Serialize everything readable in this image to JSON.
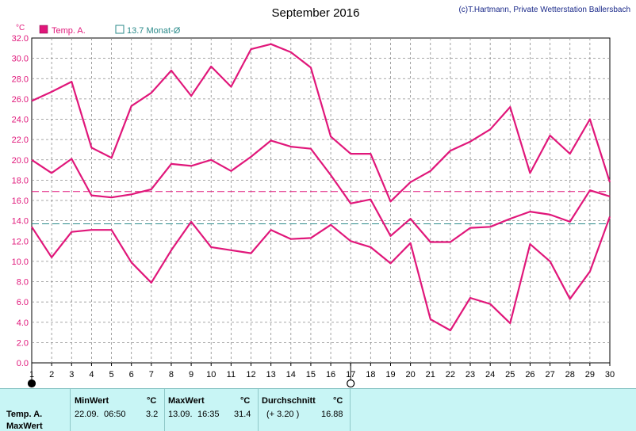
{
  "title": "September 2016",
  "credit": "(c)T.Hartmann, Private Wetterstation Ballersbach",
  "unit_label": "°C",
  "legend": {
    "series_label": "Temp. A.",
    "series_color": "#e0177a",
    "avg_label": "13.7 Monat-Ø",
    "avg_color": "#2a8a8a"
  },
  "chart_data": {
    "type": "line",
    "x": [
      1,
      2,
      3,
      4,
      5,
      6,
      7,
      8,
      9,
      10,
      11,
      12,
      13,
      14,
      15,
      16,
      17,
      18,
      19,
      20,
      21,
      22,
      23,
      24,
      25,
      26,
      27,
      28,
      29,
      30
    ],
    "ylim": [
      0,
      32
    ],
    "y_ticks": [
      "0.0",
      "2.0",
      "4.0",
      "6.0",
      "8.0",
      "10.0",
      "12.0",
      "14.0",
      "16.0",
      "18.0",
      "20.0",
      "22.0",
      "24.0",
      "26.0",
      "28.0",
      "30.0",
      "32.0"
    ],
    "grid": true,
    "series": [
      {
        "values": [
          25.8,
          26.7,
          27.7,
          21.2,
          20.2,
          25.3,
          26.6,
          28.8,
          26.3,
          29.2,
          27.2,
          30.9,
          31.4,
          30.6,
          29.1,
          22.3,
          20.6,
          20.6,
          15.9,
          17.8,
          18.9,
          20.9,
          21.8,
          23.0,
          25.2,
          18.7,
          22.4,
          20.6,
          24.0,
          17.8
        ]
      },
      {
        "values": [
          20.0,
          18.7,
          20.1,
          16.5,
          16.3,
          16.6,
          17.1,
          19.6,
          19.4,
          20.0,
          18.9,
          20.3,
          21.9,
          21.3,
          21.1,
          18.5,
          15.7,
          16.1,
          12.5,
          14.2,
          11.9,
          11.9,
          13.3,
          13.4,
          14.2,
          14.9,
          14.6,
          13.9,
          17.0,
          16.4
        ]
      },
      {
        "values": [
          13.4,
          10.4,
          12.9,
          13.1,
          13.1,
          9.9,
          7.9,
          11.1,
          13.9,
          11.4,
          11.1,
          10.8,
          13.1,
          12.2,
          12.3,
          13.6,
          12.0,
          11.4,
          9.8,
          11.8,
          4.3,
          3.2,
          6.4,
          5.8,
          3.9,
          11.7,
          10.0,
          6.3,
          9.0,
          14.4
        ]
      }
    ],
    "reference_lines": [
      {
        "value": 16.88,
        "color": "#e0177a"
      },
      {
        "value": 13.7,
        "color": "#2a8a8a"
      }
    ],
    "markers": [
      {
        "day": 1,
        "symbol": "full-moon"
      },
      {
        "day": 17,
        "symbol": "new-moon"
      }
    ]
  },
  "stats": {
    "row_label": "Temp. A.",
    "row_label2": "MaxWert",
    "min": {
      "header": "MinWert",
      "unit": "°C",
      "date": "22.09.",
      "time": "06:50",
      "value": "3.2"
    },
    "max": {
      "header": "MaxWert",
      "unit": "°C",
      "date": "13.09.",
      "time": "16:35",
      "value": "31.4"
    },
    "avg": {
      "header": "Durchschnitt",
      "unit": "°C",
      "delta": "(+ 3.20 )",
      "value": "16.88"
    }
  }
}
